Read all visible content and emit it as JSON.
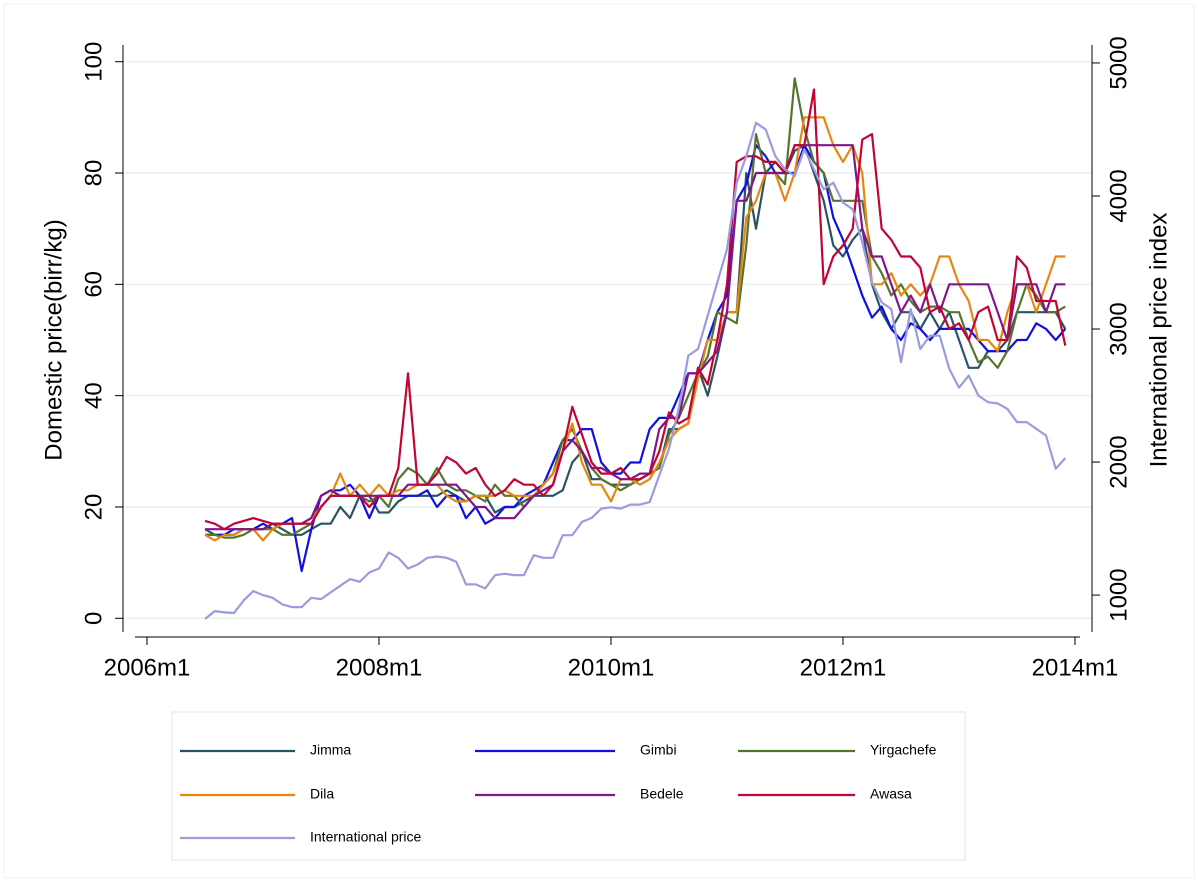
{
  "chart_data": {
    "type": "line",
    "y_label": "Domestic price(birr/kg)",
    "y2_label": "International price index",
    "x": [
      "2006m7",
      "2006m8",
      "2006m9",
      "2006m10",
      "2006m11",
      "2006m12",
      "2007m1",
      "2007m2",
      "2007m3",
      "2007m4",
      "2007m5",
      "2007m6",
      "2007m7",
      "2007m8",
      "2007m9",
      "2007m10",
      "2007m11",
      "2007m12",
      "2008m1",
      "2008m2",
      "2008m3",
      "2008m4",
      "2008m5",
      "2008m6",
      "2008m7",
      "2008m8",
      "2008m9",
      "2008m10",
      "2008m11",
      "2008m12",
      "2009m1",
      "2009m2",
      "2009m3",
      "2009m4",
      "2009m5",
      "2009m6",
      "2009m7",
      "2009m8",
      "2009m9",
      "2009m10",
      "2009m11",
      "2009m12",
      "2010m1",
      "2010m2",
      "2010m3",
      "2010m4",
      "2010m5",
      "2010m6",
      "2010m7",
      "2010m8",
      "2010m9",
      "2010m10",
      "2010m11",
      "2010m12",
      "2011m1",
      "2011m2",
      "2011m3",
      "2011m4",
      "2011m5",
      "2011m6",
      "2011m7",
      "2011m8",
      "2011m9",
      "2011m10",
      "2011m11",
      "2011m12",
      "2012m1",
      "2012m2",
      "2012m3",
      "2012m4",
      "2012m5",
      "2012m6",
      "2012m7",
      "2012m8",
      "2012m9",
      "2012m10",
      "2012m11",
      "2012m12",
      "2013m1",
      "2013m2",
      "2013m3",
      "2013m4",
      "2013m5",
      "2013m6",
      "2013m7",
      "2013m8",
      "2013m9",
      "2013m10",
      "2013m11",
      "2013m12"
    ],
    "xlim": [
      "2006m1",
      "2014m1"
    ],
    "xticks": [
      "2006m1",
      "2008m1",
      "2010m1",
      "2012m1",
      "2014m1"
    ],
    "ylim": [
      -3,
      103
    ],
    "yticks": [
      0,
      20,
      40,
      60,
      80,
      100
    ],
    "y2lim": [
      700,
      5135
    ],
    "y2ticks": [
      1000,
      2000,
      3000,
      4000,
      5000
    ],
    "grid": true,
    "series": [
      {
        "name": "Jimma",
        "color": "#2a5466",
        "values": [
          16,
          15,
          15,
          15,
          16,
          16,
          16,
          17,
          16,
          15,
          15,
          16,
          17,
          17,
          20,
          18,
          22,
          22,
          19,
          19,
          21,
          22,
          22,
          22,
          22,
          23,
          22,
          21,
          22,
          22,
          19,
          20,
          20,
          21,
          22,
          22,
          22,
          23,
          28,
          30,
          25,
          25,
          24,
          24,
          24,
          25,
          26,
          27,
          34,
          34,
          35,
          45,
          40,
          47,
          55,
          55,
          80,
          70,
          80,
          82,
          80,
          84,
          85,
          80,
          75,
          67,
          65,
          68,
          70,
          60,
          55,
          52,
          55,
          55,
          52,
          55,
          52,
          55,
          50,
          45,
          45,
          48,
          48,
          50,
          55,
          55,
          55,
          55,
          55,
          52
        ]
      },
      {
        "name": "Gimbi",
        "color": "#1010e0",
        "values": [
          15,
          15,
          15,
          16,
          16,
          16,
          17,
          16,
          17,
          18,
          8.5,
          16,
          22,
          23,
          23,
          24,
          22,
          18,
          22,
          22,
          22,
          22,
          22,
          23,
          20,
          22,
          22,
          18,
          20,
          17,
          18,
          20,
          20,
          22,
          23,
          24,
          28,
          32,
          32,
          34,
          34,
          28,
          26,
          26,
          28,
          28,
          34,
          36,
          36,
          40,
          44,
          44,
          50,
          55,
          58,
          75,
          78,
          85,
          83,
          80,
          80,
          80,
          85,
          82,
          80,
          72,
          68,
          63,
          58,
          54,
          56,
          52,
          50,
          53,
          52,
          50,
          52,
          52,
          52,
          52,
          50,
          48,
          48,
          48,
          50,
          50,
          53,
          52,
          50,
          52
        ]
      },
      {
        "name": "Yirgachefe",
        "color": "#55752f",
        "values": [
          15,
          15,
          14.5,
          14.5,
          15,
          16,
          16,
          16,
          15,
          15,
          16,
          17,
          20,
          22,
          22,
          22,
          22,
          21,
          22,
          20,
          25,
          27,
          26,
          24,
          27,
          24,
          23,
          23,
          22,
          21,
          24,
          22,
          22,
          20,
          22,
          24,
          26,
          32,
          34,
          30,
          27,
          25,
          24,
          23,
          24,
          25,
          26,
          27,
          33,
          36,
          40,
          44,
          47,
          55,
          54,
          53,
          67,
          87,
          80,
          80,
          78,
          97,
          88,
          82,
          80,
          75,
          75,
          75,
          75,
          65,
          62,
          58,
          60,
          57,
          55,
          56,
          56,
          55,
          55,
          50,
          46,
          47,
          45,
          48,
          55,
          60,
          58,
          55,
          55,
          56
        ]
      },
      {
        "name": "Dila",
        "color": "#e8870f",
        "values": [
          15,
          14,
          15,
          15,
          16,
          16,
          14,
          16,
          17,
          17,
          17,
          18,
          20,
          22,
          26,
          22,
          24,
          22,
          24,
          22,
          23,
          23,
          24,
          24,
          24,
          22,
          21,
          21,
          22,
          22,
          22,
          23,
          22,
          22,
          22,
          24,
          26,
          30,
          35,
          28,
          24,
          24,
          21,
          25,
          25,
          24,
          25,
          28,
          32,
          34,
          35,
          43,
          50,
          50,
          55,
          55,
          72,
          75,
          80,
          80,
          75,
          80,
          90,
          90,
          90,
          85,
          82,
          85,
          80,
          60,
          60,
          62,
          58,
          60,
          58,
          60,
          65,
          65,
          60,
          57,
          50,
          50,
          48,
          55,
          60,
          60,
          55,
          60,
          65,
          65
        ]
      },
      {
        "name": "Bedele",
        "color": "#80168a",
        "values": [
          16,
          16,
          16,
          16,
          16,
          16,
          16,
          17,
          17,
          17,
          17,
          18,
          22,
          23,
          22,
          22,
          22,
          22,
          22,
          22,
          22,
          24,
          24,
          24,
          24,
          24,
          24,
          22,
          20,
          20,
          18,
          18,
          18,
          20,
          22,
          23,
          24,
          30,
          32,
          30,
          27,
          27,
          26,
          25,
          25,
          26,
          26,
          34,
          36,
          36,
          44,
          44,
          46,
          48,
          55,
          75,
          75,
          80,
          80,
          80,
          80,
          85,
          85,
          85,
          85,
          85,
          85,
          85,
          70,
          65,
          65,
          60,
          55,
          58,
          55,
          60,
          55,
          60,
          60,
          60,
          60,
          60,
          55,
          50,
          60,
          60,
          60,
          55,
          60,
          60
        ]
      },
      {
        "name": "Awasa",
        "color": "#c10534",
        "values": [
          17.5,
          17,
          16,
          17,
          17.5,
          18,
          17.5,
          17,
          17,
          17,
          17,
          17,
          20,
          22,
          22,
          22,
          22,
          20,
          22,
          22,
          27,
          44,
          24,
          24,
          26,
          29,
          28,
          26,
          27,
          24,
          22,
          23,
          25,
          24,
          24,
          22,
          24,
          30,
          38,
          33,
          28,
          26,
          26,
          27,
          25,
          25,
          26,
          30,
          37,
          35,
          36,
          45,
          42,
          50,
          60,
          82,
          83,
          83,
          82,
          82,
          80,
          85,
          85,
          95,
          60,
          65,
          67,
          70,
          86,
          87,
          70,
          68,
          65,
          65,
          63,
          55,
          56,
          52,
          53,
          50,
          55,
          56,
          50,
          50,
          65,
          63,
          57,
          57,
          57,
          49
        ]
      },
      {
        "name": "International price",
        "color": "#9b9bde",
        "axis": "y2",
        "values": [
          820,
          880,
          870,
          865,
          960,
          1030,
          1000,
          980,
          930,
          910,
          910,
          980,
          970,
          1020,
          1070,
          1120,
          1100,
          1170,
          1200,
          1320,
          1280,
          1200,
          1230,
          1280,
          1290,
          1280,
          1250,
          1080,
          1080,
          1050,
          1150,
          1160,
          1150,
          1150,
          1300,
          1280,
          1280,
          1450,
          1450,
          1550,
          1580,
          1650,
          1660,
          1650,
          1680,
          1680,
          1700,
          1900,
          2100,
          2400,
          2800,
          2850,
          3100,
          3350,
          3600,
          4100,
          4300,
          4550,
          4500,
          4300,
          4200,
          4150,
          4350,
          4200,
          4050,
          4100,
          3950,
          3900,
          3650,
          3350,
          3200,
          3150,
          2750,
          3150,
          2850,
          2950,
          2950,
          2700,
          2560,
          2650,
          2500,
          2450,
          2440,
          2400,
          2300,
          2300,
          2250,
          2200,
          1950,
          2030
        ]
      }
    ]
  }
}
